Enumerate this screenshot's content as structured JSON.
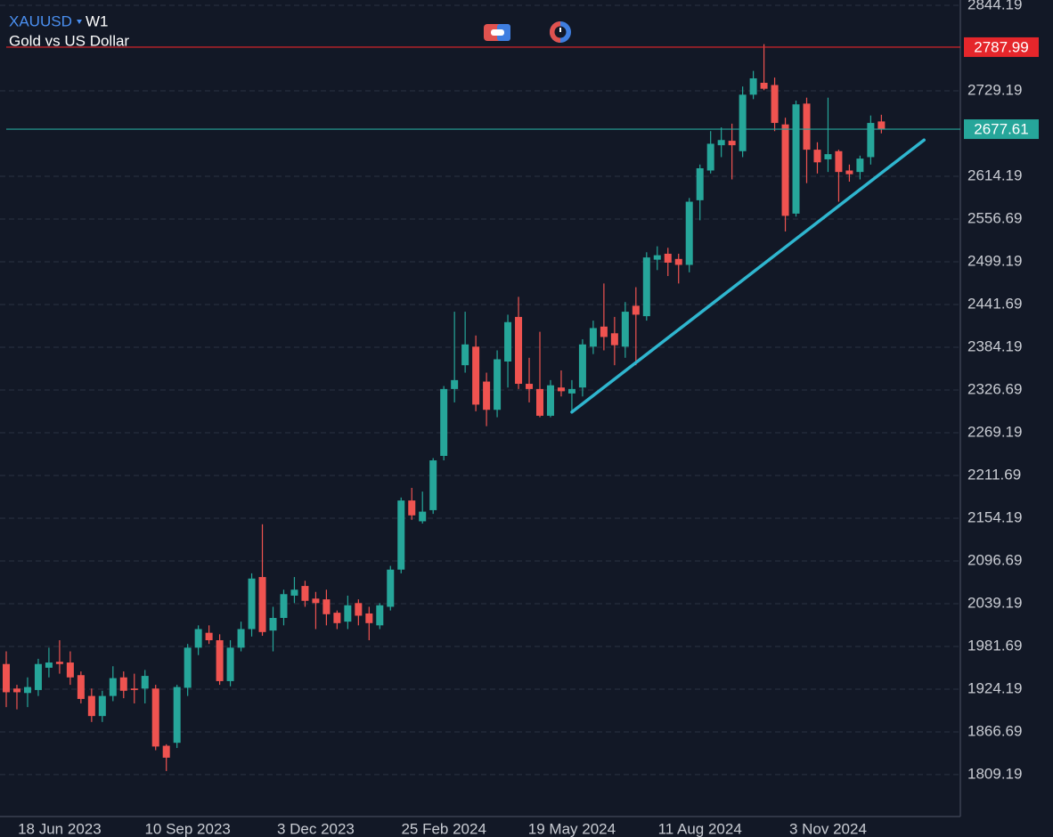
{
  "chart_data": {
    "type": "candlestick",
    "symbol": "XAUUSD",
    "timeframe": "W1",
    "title": "Gold vs US Dollar",
    "categories": [
      null,
      null,
      null,
      null,
      null,
      "18 Jun 2023",
      null,
      null,
      null,
      null,
      null,
      null,
      null,
      null,
      null,
      null,
      null,
      "10 Sep 2023",
      null,
      null,
      null,
      null,
      null,
      null,
      null,
      null,
      null,
      null,
      null,
      "3 Dec 2023",
      null,
      null,
      null,
      null,
      null,
      null,
      null,
      null,
      null,
      null,
      null,
      "25 Feb 2024",
      null,
      null,
      null,
      null,
      null,
      null,
      null,
      null,
      null,
      null,
      null,
      "19 May 2024",
      null,
      null,
      null,
      null,
      null,
      null,
      null,
      null,
      null,
      null,
      null,
      "11 Aug 2024",
      null,
      null,
      null,
      null,
      null,
      null,
      null,
      null,
      null,
      null,
      null,
      "3 Nov 2024",
      null,
      null,
      null,
      null,
      null
    ],
    "open": [
      1958,
      1925,
      1919,
      1923,
      1953,
      1961,
      1960,
      1943,
      1915,
      1888,
      1915,
      1940,
      1925,
      1925,
      1925,
      1848,
      1852,
      1926,
      1980,
      2000,
      1990,
      1935,
      1980,
      2005,
      2075,
      2003,
      2020,
      2050,
      2063,
      2046,
      2045,
      2027,
      2015,
      2040,
      2026,
      2010,
      2035,
      2085,
      2178,
      2150,
      2165,
      2238,
      2328,
      2360,
      2385,
      2338,
      2300,
      2365,
      2425,
      2335,
      2328,
      2292,
      2330,
      2322,
      2330,
      2385,
      2412,
      2403,
      2385,
      2440,
      2426,
      2502,
      2510,
      2503,
      2495,
      2582,
      2622,
      2656,
      2662,
      2648,
      2724,
      2740,
      2737,
      2684,
      2564,
      2712,
      2650,
      2637,
      2648,
      2622,
      2620,
      2640,
      2688
    ],
    "high": [
      1975,
      1930,
      1940,
      1965,
      1980,
      1990,
      1975,
      1948,
      1925,
      1922,
      1955,
      1948,
      1945,
      1950,
      1930,
      1850,
      1930,
      1985,
      2010,
      2010,
      1998,
      1990,
      2015,
      2080,
      2146,
      2035,
      2058,
      2075,
      2070,
      2055,
      2058,
      2030,
      2050,
      2045,
      2035,
      2040,
      2090,
      2182,
      2195,
      2190,
      2235,
      2332,
      2432,
      2432,
      2400,
      2350,
      2380,
      2428,
      2452,
      2370,
      2405,
      2340,
      2353,
      2340,
      2395,
      2420,
      2470,
      2425,
      2445,
      2465,
      2512,
      2520,
      2518,
      2510,
      2585,
      2630,
      2675,
      2680,
      2685,
      2735,
      2756,
      2792,
      2747,
      2693,
      2716,
      2720,
      2660,
      2720,
      2650,
      2630,
      2642,
      2696,
      2697
    ],
    "low": [
      1900,
      1897,
      1900,
      1915,
      1940,
      1945,
      1930,
      1905,
      1880,
      1880,
      1908,
      1912,
      1905,
      1905,
      1842,
      1814,
      1845,
      1915,
      1970,
      1985,
      1930,
      1928,
      1975,
      1995,
      1996,
      1975,
      2010,
      2040,
      2035,
      2005,
      2010,
      2005,
      2005,
      2010,
      1990,
      2005,
      2030,
      2080,
      2152,
      2147,
      2160,
      2232,
      2310,
      2350,
      2298,
      2278,
      2290,
      2330,
      2328,
      2310,
      2290,
      2290,
      2318,
      2296,
      2318,
      2375,
      2380,
      2360,
      2370,
      2360,
      2420,
      2488,
      2480,
      2470,
      2485,
      2555,
      2618,
      2640,
      2610,
      2640,
      2718,
      2730,
      2675,
      2540,
      2560,
      2605,
      2618,
      2620,
      2580,
      2607,
      2610,
      2630,
      2672
    ],
    "close": [
      1920,
      1920,
      1927,
      1958,
      1960,
      1958,
      1940,
      1911,
      1888,
      1915,
      1939,
      1922,
      1923,
      1942,
      1847,
      1832,
      1927,
      1980,
      2005,
      1990,
      1935,
      1980,
      2005,
      2073,
      2001,
      2020,
      2052,
      2058,
      2043,
      2040,
      2025,
      2013,
      2037,
      2023,
      2013,
      2037,
      2085,
      2178,
      2158,
      2163,
      2232,
      2328,
      2340,
      2388,
      2307,
      2300,
      2368,
      2418,
      2335,
      2328,
      2292,
      2333,
      2325,
      2328,
      2388,
      2410,
      2398,
      2387,
      2432,
      2428,
      2505,
      2508,
      2498,
      2495,
      2580,
      2625,
      2658,
      2663,
      2656,
      2724,
      2746,
      2732,
      2686,
      2561,
      2711,
      2650,
      2633,
      2644,
      2620,
      2617,
      2638,
      2686,
      2677.61
    ],
    "up_color": "#26a69a",
    "down_color": "#ef5350",
    "price_lines": [
      {
        "value": 2787.99,
        "color": "#e5262b"
      },
      {
        "value": 2677.61,
        "color": "#26a69a"
      }
    ],
    "trendline": {
      "start": [
        53,
        2297
      ],
      "end": [
        86,
        2663
      ],
      "color": "#2fb6cf"
    },
    "ylim": [
      1755.2,
      2851.4
    ],
    "yticks": [
      2844.19,
      2729.19,
      2614.19,
      2556.69,
      2499.19,
      2441.69,
      2384.19,
      2326.69,
      2269.19,
      2211.69,
      2154.19,
      2096.69,
      2039.19,
      1981.69,
      1924.19,
      1866.69,
      1809.19
    ],
    "grid": true
  }
}
